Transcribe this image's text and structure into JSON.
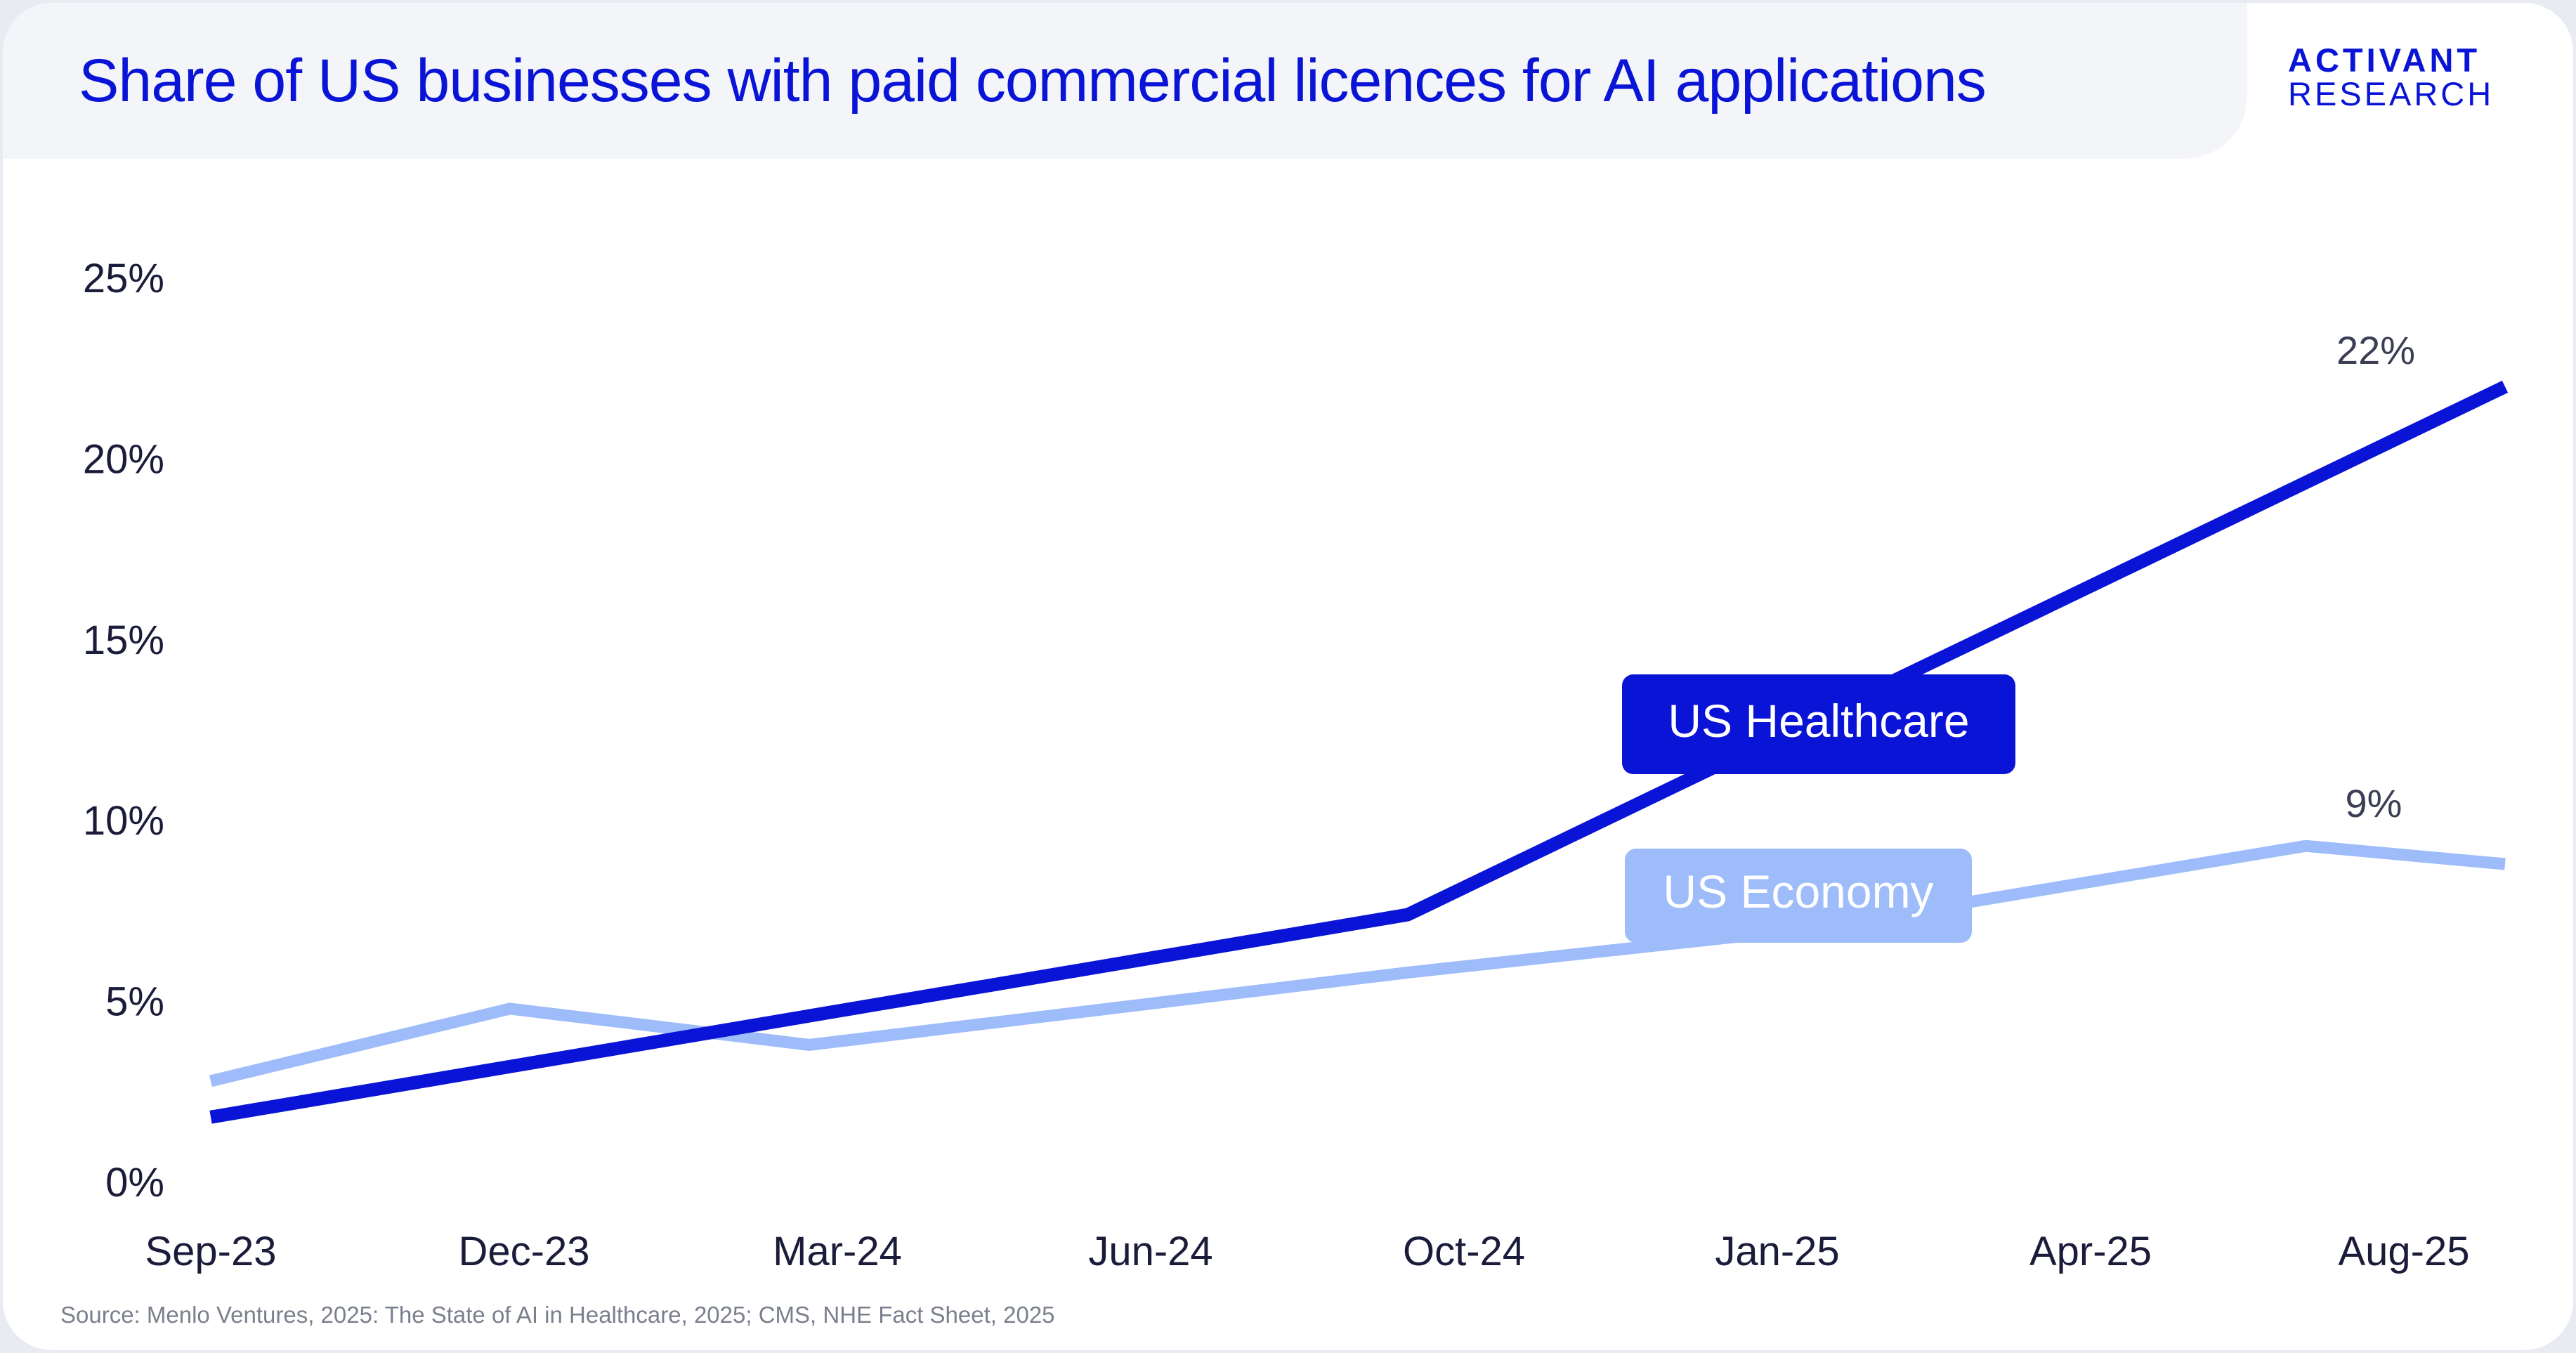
{
  "header": {
    "title": "Share of US businesses with paid commercial licences for AI applications",
    "brand_line1": "ACTIVANT",
    "brand_line2": "RESEARCH"
  },
  "footer": {
    "source": "Source: Menlo Ventures, 2025: The State of AI in Healthcare, 2025; CMS, NHE Fact Sheet, 2025"
  },
  "colors": {
    "healthcare": "#0a14d6",
    "economy": "#9dbcf9",
    "title": "#0a14d6"
  },
  "chart_data": {
    "type": "line",
    "title": "Share of US businesses with paid commercial licences for AI applications",
    "xlabel": "",
    "ylabel": "",
    "x_tick_labels": [
      "Sep-23",
      "Dec-23",
      "Mar-24",
      "Jun-24",
      "Oct-24",
      "Jan-25",
      "Apr-25",
      "Aug-25"
    ],
    "y_tick_labels": [
      "0%",
      "5%",
      "10%",
      "15%",
      "20%",
      "25%"
    ],
    "ylim": [
      0,
      25
    ],
    "xlim": [
      "2023-09",
      "2025-08"
    ],
    "grid": false,
    "legend": "inline labels",
    "series": [
      {
        "name": "US Healthcare",
        "color": "#0a14d6",
        "points": [
          {
            "x": "2023-09",
            "y": 1.8
          },
          {
            "x": "2024-09",
            "y": 7.4
          },
          {
            "x": "2025-08",
            "y": 22
          }
        ],
        "end_label": "22%"
      },
      {
        "name": "US Economy",
        "color": "#9dbcf9",
        "points": [
          {
            "x": "2023-09",
            "y": 2.8
          },
          {
            "x": "2023-12",
            "y": 4.8
          },
          {
            "x": "2024-03",
            "y": 3.8
          },
          {
            "x": "2024-09",
            "y": 5.8
          },
          {
            "x": "2025-01",
            "y": 7.0
          },
          {
            "x": "2025-06",
            "y": 9.3
          },
          {
            "x": "2025-08",
            "y": 8.8
          }
        ],
        "end_label": "9%"
      }
    ]
  }
}
